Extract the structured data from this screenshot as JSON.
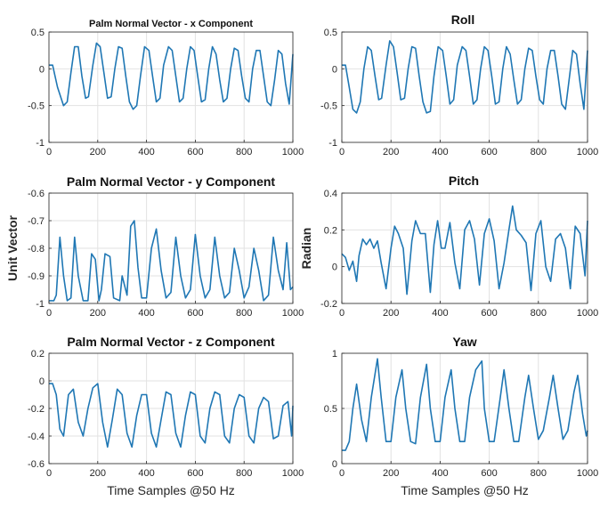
{
  "chart_data": [
    {
      "id": "px",
      "type": "line",
      "title": "Palm Normal Vector - x Component",
      "xlabel": "",
      "ylabel": "",
      "xlim": [
        0,
        1000
      ],
      "ylim": [
        -1,
        0.5
      ],
      "xticks": [
        0,
        200,
        400,
        600,
        800,
        1000
      ],
      "yticks": [
        -1,
        -0.5,
        0,
        0.5
      ],
      "xtick_labels": [
        "0",
        "200",
        "400",
        "600",
        "800",
        "1000"
      ],
      "ytick_labels": [
        "-1",
        "-0.5",
        "0",
        "0.5"
      ],
      "grid": true,
      "color": "#1f77b4",
      "series": [
        {
          "name": "x component",
          "x": [
            0,
            15,
            35,
            60,
            75,
            90,
            105,
            120,
            135,
            150,
            162,
            180,
            195,
            210,
            225,
            240,
            255,
            270,
            285,
            300,
            315,
            330,
            345,
            360,
            375,
            392,
            410,
            425,
            440,
            455,
            470,
            490,
            505,
            520,
            535,
            550,
            565,
            580,
            595,
            610,
            625,
            640,
            655,
            670,
            685,
            700,
            715,
            730,
            745,
            760,
            775,
            790,
            805,
            820,
            835,
            850,
            865,
            880,
            895,
            910,
            925,
            940,
            955,
            970,
            985,
            1000
          ],
          "y": [
            0.05,
            0.05,
            -0.25,
            -0.5,
            -0.45,
            -0.05,
            0.3,
            0.3,
            -0.1,
            -0.4,
            -0.38,
            0.05,
            0.35,
            0.3,
            -0.05,
            -0.4,
            -0.38,
            0.0,
            0.3,
            0.28,
            -0.1,
            -0.45,
            -0.55,
            -0.5,
            -0.1,
            0.3,
            0.25,
            -0.1,
            -0.45,
            -0.4,
            0.05,
            0.3,
            0.25,
            -0.1,
            -0.45,
            -0.4,
            0.0,
            0.3,
            0.25,
            -0.1,
            -0.45,
            -0.42,
            0.0,
            0.3,
            0.2,
            -0.15,
            -0.45,
            -0.4,
            0.0,
            0.28,
            0.25,
            -0.1,
            -0.4,
            -0.45,
            0.0,
            0.25,
            0.25,
            -0.1,
            -0.45,
            -0.5,
            -0.15,
            0.25,
            0.2,
            -0.2,
            -0.48,
            0.2
          ]
        }
      ]
    },
    {
      "id": "roll",
      "type": "line",
      "title": "Roll",
      "xlabel": "",
      "ylabel": "",
      "xlim": [
        0,
        1000
      ],
      "ylim": [
        -1,
        0.5
      ],
      "xticks": [
        0,
        200,
        400,
        600,
        800,
        1000
      ],
      "yticks": [
        -1,
        -0.5,
        0,
        0.5
      ],
      "xtick_labels": [
        "0",
        "200",
        "400",
        "600",
        "800",
        "1000"
      ],
      "ytick_labels": [
        "-1",
        "-0.5",
        "0",
        "0.5"
      ],
      "grid": true,
      "color": "#1f77b4",
      "series": [
        {
          "name": "roll",
          "x": [
            0,
            15,
            30,
            45,
            60,
            75,
            90,
            105,
            120,
            135,
            150,
            162,
            180,
            195,
            210,
            225,
            240,
            255,
            270,
            285,
            300,
            315,
            330,
            345,
            360,
            375,
            392,
            410,
            425,
            440,
            455,
            470,
            490,
            505,
            520,
            535,
            550,
            565,
            580,
            595,
            610,
            625,
            640,
            655,
            670,
            685,
            700,
            715,
            730,
            745,
            760,
            775,
            790,
            805,
            820,
            835,
            850,
            865,
            880,
            895,
            910,
            925,
            940,
            955,
            970,
            985,
            1000
          ],
          "y": [
            0.05,
            0.05,
            -0.25,
            -0.55,
            -0.6,
            -0.45,
            0.0,
            0.3,
            0.25,
            -0.1,
            -0.42,
            -0.4,
            0.05,
            0.38,
            0.3,
            -0.05,
            -0.42,
            -0.4,
            0.0,
            0.3,
            0.28,
            -0.1,
            -0.45,
            -0.6,
            -0.58,
            -0.1,
            0.3,
            0.25,
            -0.1,
            -0.48,
            -0.42,
            0.05,
            0.3,
            0.25,
            -0.1,
            -0.48,
            -0.42,
            0.0,
            0.3,
            0.25,
            -0.1,
            -0.48,
            -0.45,
            0.0,
            0.3,
            0.2,
            -0.15,
            -0.48,
            -0.42,
            0.0,
            0.28,
            0.25,
            -0.1,
            -0.42,
            -0.48,
            0.0,
            0.25,
            0.25,
            -0.1,
            -0.48,
            -0.55,
            -0.15,
            0.25,
            0.2,
            -0.2,
            -0.55,
            0.25
          ]
        }
      ]
    },
    {
      "id": "py",
      "type": "line",
      "title": "Palm Normal Vector - y Component",
      "xlabel": "",
      "ylabel": "Unit Vector",
      "xlim": [
        0,
        1000
      ],
      "ylim": [
        -1,
        -0.6
      ],
      "xticks": [
        0,
        200,
        400,
        600,
        800,
        1000
      ],
      "yticks": [
        -1,
        -0.9,
        -0.8,
        -0.7,
        -0.6
      ],
      "xtick_labels": [
        "0",
        "200",
        "400",
        "600",
        "800",
        "1000"
      ],
      "ytick_labels": [
        "-1",
        "-0.9",
        "-0.8",
        "-0.7",
        "-0.6"
      ],
      "grid": true,
      "color": "#1f77b4",
      "series": [
        {
          "name": "y component",
          "x": [
            0,
            20,
            30,
            45,
            60,
            75,
            90,
            105,
            120,
            140,
            160,
            175,
            190,
            205,
            215,
            230,
            250,
            265,
            290,
            300,
            320,
            335,
            350,
            365,
            380,
            400,
            420,
            440,
            460,
            480,
            500,
            520,
            540,
            560,
            580,
            600,
            620,
            640,
            660,
            680,
            700,
            720,
            740,
            760,
            780,
            800,
            820,
            840,
            860,
            880,
            900,
            920,
            940,
            960,
            975,
            990,
            1000
          ],
          "y": [
            -0.99,
            -0.99,
            -0.97,
            -0.76,
            -0.9,
            -0.99,
            -0.98,
            -0.76,
            -0.9,
            -0.99,
            -0.99,
            -0.82,
            -0.84,
            -0.99,
            -0.95,
            -0.82,
            -0.83,
            -0.98,
            -0.99,
            -0.9,
            -0.97,
            -0.72,
            -0.7,
            -0.87,
            -0.98,
            -0.98,
            -0.8,
            -0.73,
            -0.88,
            -0.98,
            -0.96,
            -0.76,
            -0.9,
            -0.98,
            -0.95,
            -0.75,
            -0.9,
            -0.98,
            -0.95,
            -0.76,
            -0.9,
            -0.98,
            -0.96,
            -0.8,
            -0.88,
            -0.98,
            -0.94,
            -0.8,
            -0.88,
            -0.99,
            -0.97,
            -0.76,
            -0.88,
            -0.95,
            -0.78,
            -0.95,
            -0.94
          ]
        }
      ]
    },
    {
      "id": "pitch",
      "type": "line",
      "title": "Pitch",
      "xlabel": "",
      "ylabel": "Radian",
      "xlim": [
        0,
        1000
      ],
      "ylim": [
        -0.2,
        0.4
      ],
      "xticks": [
        0,
        200,
        400,
        600,
        800,
        1000
      ],
      "yticks": [
        -0.2,
        0,
        0.2,
        0.4
      ],
      "xtick_labels": [
        "0",
        "200",
        "400",
        "600",
        "800",
        "1000"
      ],
      "ytick_labels": [
        "-0.2",
        "0",
        "0.2",
        "0.4"
      ],
      "grid": true,
      "color": "#1f77b4",
      "series": [
        {
          "name": "pitch",
          "x": [
            0,
            15,
            30,
            45,
            60,
            70,
            85,
            100,
            115,
            130,
            145,
            160,
            180,
            200,
            215,
            230,
            250,
            265,
            285,
            300,
            320,
            340,
            360,
            375,
            390,
            405,
            420,
            440,
            460,
            480,
            500,
            520,
            540,
            560,
            580,
            600,
            620,
            640,
            660,
            680,
            695,
            710,
            730,
            750,
            770,
            790,
            810,
            830,
            850,
            870,
            890,
            910,
            930,
            950,
            970,
            990,
            1000
          ],
          "y": [
            0.07,
            0.05,
            -0.02,
            0.03,
            -0.08,
            0.06,
            0.15,
            0.12,
            0.15,
            0.1,
            0.14,
            0.02,
            -0.12,
            0.1,
            0.22,
            0.18,
            0.1,
            -0.15,
            0.14,
            0.25,
            0.18,
            0.18,
            -0.14,
            0.12,
            0.25,
            0.1,
            0.1,
            0.24,
            0.02,
            -0.12,
            0.2,
            0.25,
            0.15,
            -0.1,
            0.18,
            0.26,
            0.14,
            -0.12,
            0.02,
            0.2,
            0.33,
            0.2,
            0.17,
            0.13,
            -0.13,
            0.18,
            0.25,
            0.0,
            -0.08,
            0.15,
            0.18,
            0.1,
            -0.12,
            0.22,
            0.18,
            -0.05,
            0.25
          ]
        }
      ]
    },
    {
      "id": "pz",
      "type": "line",
      "title": "Palm Normal Vector - z Component",
      "xlabel": "Time Samples @50 Hz",
      "ylabel": "",
      "xlim": [
        0,
        1000
      ],
      "ylim": [
        -0.6,
        0.2
      ],
      "xticks": [
        0,
        200,
        400,
        600,
        800,
        1000
      ],
      "yticks": [
        -0.6,
        -0.4,
        -0.2,
        0,
        0.2
      ],
      "xtick_labels": [
        "0",
        "200",
        "400",
        "600",
        "800",
        "1000"
      ],
      "ytick_labels": [
        "-0.6",
        "-0.4",
        "-0.2",
        "0",
        "0.2"
      ],
      "grid": true,
      "color": "#1f77b4",
      "series": [
        {
          "name": "z component",
          "x": [
            0,
            15,
            30,
            45,
            60,
            80,
            100,
            120,
            140,
            160,
            180,
            200,
            220,
            240,
            260,
            280,
            300,
            320,
            340,
            360,
            380,
            400,
            420,
            440,
            460,
            480,
            500,
            520,
            540,
            560,
            580,
            600,
            620,
            640,
            660,
            680,
            700,
            720,
            740,
            760,
            780,
            800,
            820,
            840,
            860,
            880,
            900,
            920,
            940,
            960,
            980,
            995,
            1000
          ],
          "y": [
            -0.02,
            -0.02,
            -0.1,
            -0.35,
            -0.4,
            -0.1,
            -0.06,
            -0.3,
            -0.4,
            -0.2,
            -0.05,
            -0.02,
            -0.3,
            -0.48,
            -0.28,
            -0.06,
            -0.1,
            -0.38,
            -0.48,
            -0.25,
            -0.1,
            -0.1,
            -0.38,
            -0.48,
            -0.28,
            -0.08,
            -0.1,
            -0.38,
            -0.48,
            -0.25,
            -0.08,
            -0.1,
            -0.4,
            -0.45,
            -0.2,
            -0.08,
            -0.1,
            -0.4,
            -0.45,
            -0.2,
            -0.1,
            -0.12,
            -0.4,
            -0.45,
            -0.2,
            -0.12,
            -0.15,
            -0.42,
            -0.4,
            -0.18,
            -0.15,
            -0.4,
            -0.18
          ]
        }
      ]
    },
    {
      "id": "yaw",
      "type": "line",
      "title": "Yaw",
      "xlabel": "Time Samples @50 Hz",
      "ylabel": "",
      "xlim": [
        0,
        1000
      ],
      "ylim": [
        0,
        1
      ],
      "xticks": [
        0,
        200,
        400,
        600,
        800,
        1000
      ],
      "yticks": [
        0,
        0.5,
        1
      ],
      "xtick_labels": [
        "0",
        "200",
        "400",
        "600",
        "800",
        "1000"
      ],
      "ytick_labels": [
        "0",
        "0.5",
        "1"
      ],
      "grid": true,
      "color": "#1f77b4",
      "series": [
        {
          "name": "yaw",
          "x": [
            0,
            15,
            30,
            45,
            60,
            80,
            100,
            120,
            145,
            160,
            180,
            200,
            220,
            245,
            260,
            280,
            300,
            320,
            345,
            360,
            380,
            400,
            420,
            445,
            460,
            480,
            500,
            520,
            545,
            570,
            580,
            600,
            620,
            645,
            660,
            680,
            700,
            720,
            745,
            760,
            780,
            800,
            820,
            845,
            860,
            880,
            900,
            920,
            945,
            960,
            980,
            995,
            1000
          ],
          "y": [
            0.12,
            0.12,
            0.2,
            0.5,
            0.72,
            0.4,
            0.2,
            0.6,
            0.95,
            0.6,
            0.2,
            0.2,
            0.6,
            0.85,
            0.5,
            0.2,
            0.18,
            0.6,
            0.9,
            0.5,
            0.2,
            0.2,
            0.6,
            0.85,
            0.5,
            0.2,
            0.2,
            0.6,
            0.85,
            0.93,
            0.5,
            0.2,
            0.2,
            0.6,
            0.85,
            0.5,
            0.2,
            0.2,
            0.6,
            0.8,
            0.5,
            0.22,
            0.3,
            0.6,
            0.8,
            0.5,
            0.22,
            0.3,
            0.65,
            0.8,
            0.45,
            0.25,
            0.3
          ]
        }
      ]
    }
  ]
}
